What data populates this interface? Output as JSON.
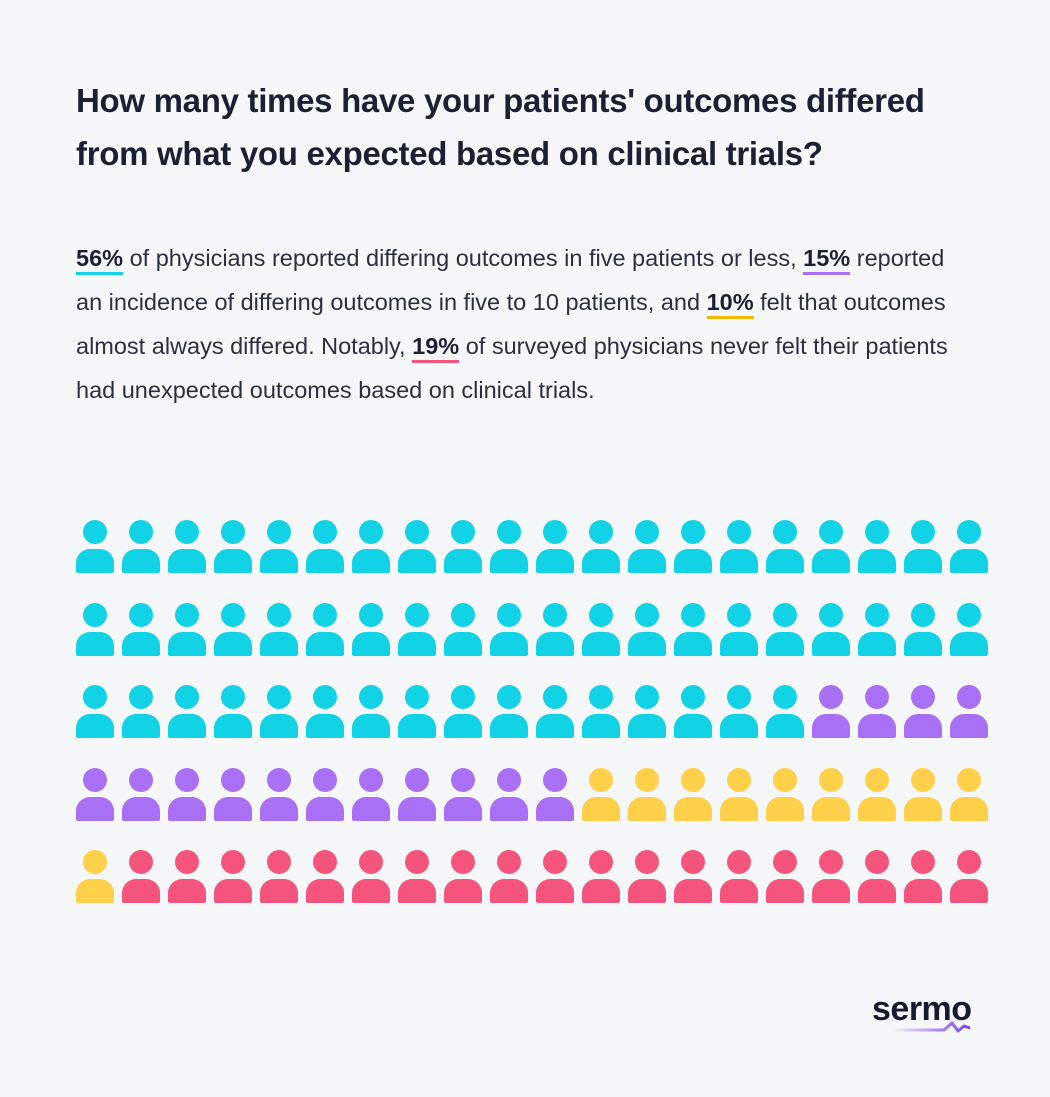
{
  "title": "How many times have your patients' outcomes differed from what you expected based on clinical trials?",
  "paragraph": {
    "p56": "56%",
    "t1": " of physicians reported differing outcomes in five patients or less, ",
    "p15": "15%",
    "t2": " reported an incidence of differing outcomes in five to 10 patients, and ",
    "p10": "10%",
    "t3": " felt that outcomes almost always differed. Notably, ",
    "p19": "19%",
    "t4": " of surveyed physicians never felt their patients had unexpected outcomes based on clinical trials."
  },
  "chart_data": {
    "type": "pictogram",
    "total_icons": 100,
    "icons_per_row": 20,
    "series": [
      {
        "label": "five patients or less",
        "value": 56,
        "color": "#12d3e6"
      },
      {
        "label": "five to 10 patients",
        "value": 15,
        "color": "#a96ff4"
      },
      {
        "label": "almost always differed",
        "value": 10,
        "color": "#ffd049"
      },
      {
        "label": "never",
        "value": 19,
        "color": "#f5557d"
      }
    ]
  },
  "logo": {
    "text": "sermo",
    "accent": "#7b3ff2"
  }
}
